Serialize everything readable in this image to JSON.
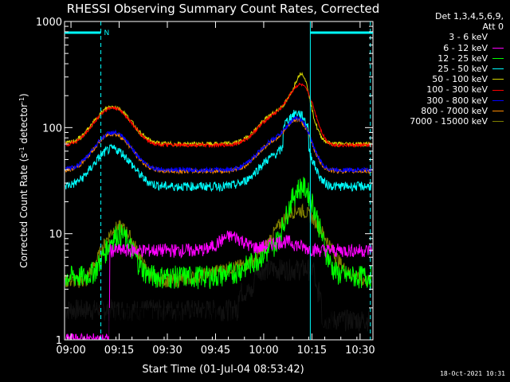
{
  "chart_data": {
    "type": "line",
    "title": "RHESSI Observing Summary Count Rates, Corrected",
    "xlabel": "Start Time (01-Jul-04 08:53:42)",
    "ylabel_main": "Corrected Count Rate (s",
    "ylabel_sup1": "-1",
    "ylabel_mid": " detector",
    "ylabel_sup2": "-1",
    "ylabel_end": ")",
    "yscale": "log",
    "ylim": [
      1,
      1000
    ],
    "xlim_minutes": [
      -2,
      94
    ],
    "x_ticks": [
      {
        "label": "09:00",
        "min": 0
      },
      {
        "label": "09:15",
        "min": 15
      },
      {
        "label": "09:30",
        "min": 30
      },
      {
        "label": "09:45",
        "min": 45
      },
      {
        "label": "10:00",
        "min": 60
      },
      {
        "label": "10:15",
        "min": 75
      },
      {
        "label": "10:30",
        "min": 90
      }
    ],
    "y_ticks": [
      {
        "label": "1",
        "value": 1
      },
      {
        "label": "10",
        "value": 10
      },
      {
        "label": "100",
        "value": 100
      },
      {
        "label": "1000",
        "value": 1000
      }
    ],
    "legend_header": "Det 1,3,4,5,6,9,",
    "legend_subheader": "Att 0",
    "series": [
      {
        "name": "3 - 6 keV",
        "color": "#000000"
      },
      {
        "name": "6 - 12 keV",
        "color": "#ff00ff"
      },
      {
        "name": "12 - 25 keV",
        "color": "#00ff00"
      },
      {
        "name": "25 - 50 keV",
        "color": "#00ffff"
      },
      {
        "name": "50 - 100 keV",
        "color": "#d8d800"
      },
      {
        "name": "100 - 300 keV",
        "color": "#ff0000"
      },
      {
        "name": "300 - 800 keV",
        "color": "#0000ff"
      },
      {
        "name": "800 - 7000 keV",
        "color": "#ff8c00"
      },
      {
        "name": "7000 - 15000 keV",
        "color": "#808000"
      }
    ],
    "annotations": {
      "night_marker": "N",
      "night_start_min": 9.3,
      "night_end_min": 74.5,
      "right_marker_min": 93.2
    },
    "timestamp": "18-Oct-2021 10:31"
  }
}
